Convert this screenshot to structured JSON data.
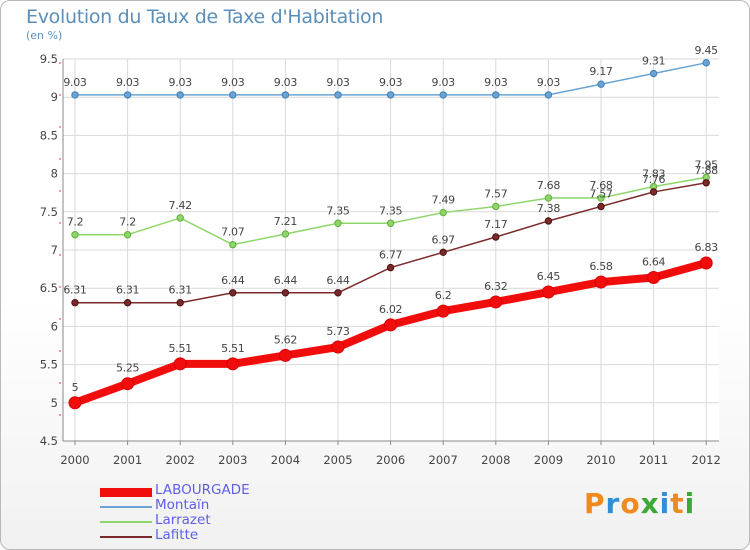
{
  "title": "Evolution du Taux de Taxe d'Habitation",
  "subtitle": "(en %)",
  "logo": {
    "text": "Proxiti",
    "colors": [
      "#f08a1c",
      "#2f8fd8",
      "#f08a1c",
      "#3aaa35",
      "#2f8fd8",
      "#f08a1c",
      "#3aaa35"
    ]
  },
  "chart_data": {
    "type": "line",
    "x": [
      2000,
      2001,
      2002,
      2003,
      2004,
      2005,
      2006,
      2007,
      2008,
      2009,
      2010,
      2011,
      2012
    ],
    "ylim": [
      4.5,
      9.5
    ],
    "yticks": [
      4.5,
      5,
      5.5,
      6,
      6.5,
      7,
      7.5,
      8,
      8.5,
      9,
      9.5
    ],
    "grid": true,
    "legend": "bottom-left",
    "xlabel": "",
    "ylabel": "",
    "series": [
      {
        "name": "LABOURGADE",
        "color": "#f20d0d",
        "width": 8,
        "marker": 6,
        "markerStroke": "#d80000",
        "values": [
          5,
          5.25,
          5.51,
          5.51,
          5.62,
          5.73,
          6.02,
          6.2,
          6.32,
          6.45,
          6.58,
          6.64,
          6.83
        ],
        "labels": [
          "5",
          "5.25",
          "5.51",
          "5.51",
          "5.62",
          "5.73",
          "6.02",
          "6.2",
          "6.32",
          "6.45",
          "6.58",
          "6.64",
          "6.83"
        ]
      },
      {
        "name": "Montaïn",
        "color": "#6aa4d4",
        "width": 1.5,
        "marker": 3.2,
        "markerStroke": "#3f7fb5",
        "values": [
          9.03,
          9.03,
          9.03,
          9.03,
          9.03,
          9.03,
          9.03,
          9.03,
          9.03,
          9.03,
          9.17,
          9.31,
          9.45
        ],
        "labels": [
          "9.03",
          "9.03",
          "9.03",
          "9.03",
          "9.03",
          "9.03",
          "9.03",
          "9.03",
          "9.03",
          "9.03",
          "9.17",
          "9.31",
          "9.45"
        ]
      },
      {
        "name": "Larrazet",
        "color": "#8fd66a",
        "width": 1.5,
        "marker": 3.2,
        "markerStroke": "#5fae3a",
        "values": [
          7.2,
          7.2,
          7.42,
          7.07,
          7.21,
          7.35,
          7.35,
          7.49,
          7.57,
          7.68,
          7.68,
          7.83,
          7.95
        ],
        "labels": [
          "7.2",
          "7.2",
          "7.42",
          "7.07",
          "7.21",
          "7.35",
          "7.35",
          "7.49",
          "7.57",
          "7.68",
          "7.68",
          "7.83",
          "7.95"
        ]
      },
      {
        "name": "Lafitte",
        "color": "#7a2a2a",
        "width": 1.5,
        "marker": 3.2,
        "markerStroke": "#4a1010",
        "values": [
          6.31,
          6.31,
          6.31,
          6.44,
          6.44,
          6.44,
          6.77,
          6.97,
          7.17,
          7.38,
          7.57,
          7.76,
          7.88
        ],
        "labels": [
          "6.31",
          "6.31",
          "6.31",
          "6.44",
          "6.44",
          "6.44",
          "6.77",
          "6.97",
          "7.17",
          "7.38",
          "7.57",
          "7.76",
          "7.88"
        ]
      }
    ]
  }
}
